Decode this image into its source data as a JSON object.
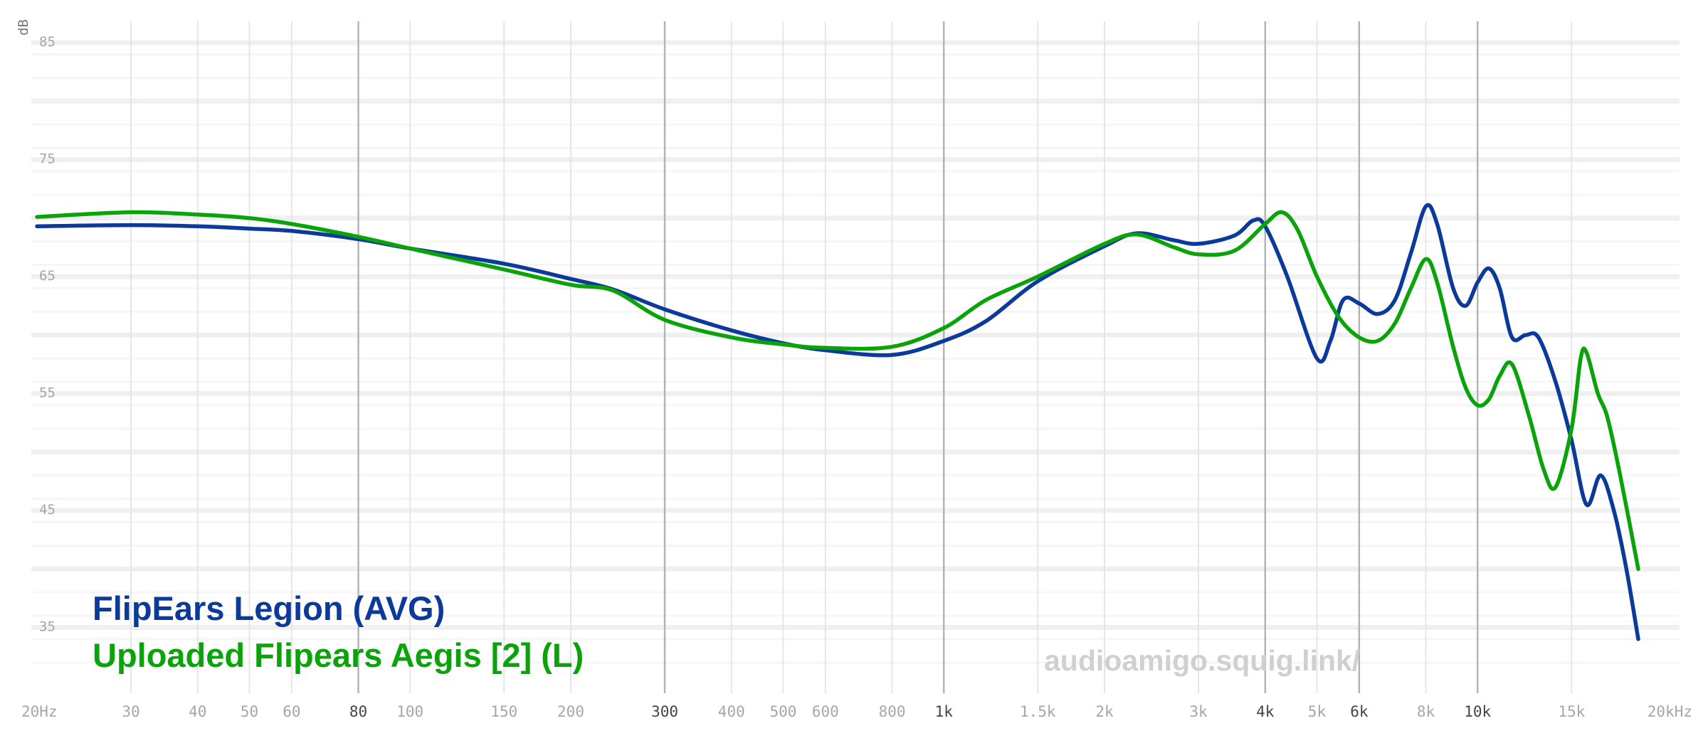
{
  "chart_data": {
    "type": "line",
    "title": "",
    "xlabel": "",
    "ylabel": "dB",
    "x_scale": "log",
    "xlim": [
      20,
      20000
    ],
    "ylim": [
      30,
      85
    ],
    "y_ticks": [
      85,
      75,
      65,
      55,
      45,
      35
    ],
    "x_ticks": [
      {
        "hz": 20,
        "label": "20Hz",
        "major": false
      },
      {
        "hz": 30,
        "label": "30",
        "major": false
      },
      {
        "hz": 40,
        "label": "40",
        "major": false
      },
      {
        "hz": 50,
        "label": "50",
        "major": false
      },
      {
        "hz": 60,
        "label": "60",
        "major": false
      },
      {
        "hz": 80,
        "label": "80",
        "major": true
      },
      {
        "hz": 100,
        "label": "100",
        "major": false
      },
      {
        "hz": 150,
        "label": "150",
        "major": false
      },
      {
        "hz": 200,
        "label": "200",
        "major": false
      },
      {
        "hz": 300,
        "label": "300",
        "major": true
      },
      {
        "hz": 400,
        "label": "400",
        "major": false
      },
      {
        "hz": 500,
        "label": "500",
        "major": false
      },
      {
        "hz": 600,
        "label": "600",
        "major": false
      },
      {
        "hz": 800,
        "label": "800",
        "major": false
      },
      {
        "hz": 1000,
        "label": "1k",
        "major": true
      },
      {
        "hz": 1500,
        "label": "1.5k",
        "major": false
      },
      {
        "hz": 2000,
        "label": "2k",
        "major": false
      },
      {
        "hz": 3000,
        "label": "3k",
        "major": false
      },
      {
        "hz": 4000,
        "label": "4k",
        "major": true
      },
      {
        "hz": 5000,
        "label": "5k",
        "major": false
      },
      {
        "hz": 6000,
        "label": "6k",
        "major": true
      },
      {
        "hz": 8000,
        "label": "8k",
        "major": false
      },
      {
        "hz": 10000,
        "label": "10k",
        "major": true
      },
      {
        "hz": 15000,
        "label": "15k",
        "major": false
      },
      {
        "hz": 20000,
        "label": "20kHz",
        "major": false
      }
    ],
    "grid": true,
    "legend_position": "bottom-left",
    "series": [
      {
        "name": "FlipEars Legion (AVG)",
        "color": "#0b3a9a",
        "points": [
          [
            20,
            69.3
          ],
          [
            30,
            69.4
          ],
          [
            40,
            69.3
          ],
          [
            50,
            69.1
          ],
          [
            60,
            68.9
          ],
          [
            80,
            68.2
          ],
          [
            100,
            67.4
          ],
          [
            150,
            66.1
          ],
          [
            200,
            64.8
          ],
          [
            240,
            63.9
          ],
          [
            300,
            62.2
          ],
          [
            400,
            60.4
          ],
          [
            500,
            59.3
          ],
          [
            600,
            58.7
          ],
          [
            800,
            58.3
          ],
          [
            1000,
            59.5
          ],
          [
            1200,
            61.2
          ],
          [
            1500,
            64.6
          ],
          [
            2000,
            67.6
          ],
          [
            2300,
            68.7
          ],
          [
            2700,
            68.1
          ],
          [
            3000,
            67.8
          ],
          [
            3500,
            68.5
          ],
          [
            3800,
            69.8
          ],
          [
            4000,
            69.3
          ],
          [
            4400,
            65.0
          ],
          [
            5000,
            58.0
          ],
          [
            5300,
            59.5
          ],
          [
            5600,
            63.0
          ],
          [
            6000,
            62.7
          ],
          [
            6500,
            61.8
          ],
          [
            7000,
            63.0
          ],
          [
            7500,
            67.0
          ],
          [
            8000,
            71.0
          ],
          [
            8400,
            69.5
          ],
          [
            9000,
            64.0
          ],
          [
            9500,
            62.5
          ],
          [
            10000,
            64.5
          ],
          [
            10500,
            65.7
          ],
          [
            11000,
            64.0
          ],
          [
            11600,
            59.8
          ],
          [
            12300,
            60.0
          ],
          [
            13000,
            59.8
          ],
          [
            14000,
            56.0
          ],
          [
            15000,
            51.0
          ],
          [
            16000,
            45.5
          ],
          [
            17000,
            48.0
          ],
          [
            18000,
            45.0
          ],
          [
            19000,
            40.0
          ],
          [
            20000,
            34.0
          ]
        ]
      },
      {
        "name": "Uploaded Flipears Aegis [2] (L)",
        "color": "#0aa30a",
        "points": [
          [
            20,
            70.1
          ],
          [
            30,
            70.5
          ],
          [
            40,
            70.3
          ],
          [
            50,
            70.0
          ],
          [
            60,
            69.5
          ],
          [
            80,
            68.4
          ],
          [
            100,
            67.4
          ],
          [
            150,
            65.6
          ],
          [
            200,
            64.3
          ],
          [
            240,
            63.8
          ],
          [
            300,
            61.3
          ],
          [
            400,
            59.8
          ],
          [
            500,
            59.2
          ],
          [
            600,
            58.9
          ],
          [
            800,
            59.0
          ],
          [
            1000,
            60.6
          ],
          [
            1200,
            63.0
          ],
          [
            1500,
            65.0
          ],
          [
            2000,
            67.8
          ],
          [
            2300,
            68.6
          ],
          [
            2700,
            67.5
          ],
          [
            3000,
            66.9
          ],
          [
            3500,
            67.2
          ],
          [
            4000,
            69.5
          ],
          [
            4300,
            70.5
          ],
          [
            4600,
            69.0
          ],
          [
            5000,
            65.0
          ],
          [
            5500,
            61.5
          ],
          [
            6000,
            59.8
          ],
          [
            6500,
            59.5
          ],
          [
            7000,
            61.0
          ],
          [
            7500,
            64.0
          ],
          [
            8000,
            66.5
          ],
          [
            8400,
            64.5
          ],
          [
            9000,
            59.0
          ],
          [
            9500,
            55.5
          ],
          [
            10000,
            54.0
          ],
          [
            10500,
            54.5
          ],
          [
            11000,
            56.5
          ],
          [
            11600,
            57.5
          ],
          [
            12500,
            53.0
          ],
          [
            13300,
            48.5
          ],
          [
            14000,
            47.0
          ],
          [
            15000,
            52.0
          ],
          [
            15600,
            58.0
          ],
          [
            16000,
            58.5
          ],
          [
            16800,
            55.0
          ],
          [
            17500,
            53.0
          ],
          [
            18500,
            48.0
          ],
          [
            20000,
            40.0
          ]
        ]
      }
    ]
  },
  "watermark": "audioamigo.squig.link/"
}
